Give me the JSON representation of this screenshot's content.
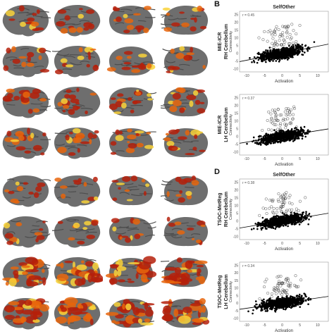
{
  "figure": {
    "panel_b_letter": "B",
    "panel_d_letter": "D",
    "brain_rows": [
      {
        "intensity": 0.35,
        "label": ""
      },
      {
        "intensity": 0.35,
        "label": ""
      },
      {
        "intensity": 0.45,
        "label": ""
      },
      {
        "intensity": 0.45,
        "label": ""
      },
      {
        "intensity": 0.25,
        "label": ""
      },
      {
        "intensity": 0.25,
        "label": ""
      },
      {
        "intensity": 0.95,
        "label": ""
      },
      {
        "intensity": 0.95,
        "label": ""
      }
    ],
    "colors": {
      "cortex": "#6e6e6e",
      "hot_low": "#b5200a",
      "hot_mid": "#e8650c",
      "hot_high": "#f9d23a"
    }
  },
  "chart_data": [
    {
      "type": "scatter",
      "panel": "B",
      "title": "SelfOther",
      "row_label_line1": "MIE-ICR",
      "row_label_line2": "RH Cerebellum",
      "xlabel": "Activation",
      "ylabel": "Connectivity",
      "r_text": "r = 0.45",
      "xticks": [
        "-10",
        "-5",
        "0",
        "5",
        "10"
      ],
      "yticks": [
        "-10",
        "-5",
        "0",
        "5",
        "10",
        "15",
        "20",
        "25"
      ],
      "xlim": [
        -12,
        13
      ],
      "ylim": [
        -12,
        27
      ],
      "slope": 0.45,
      "intercept": 0
    },
    {
      "type": "scatter",
      "panel": "B",
      "title": "",
      "row_label_line1": "MIE-ICR",
      "row_label_line2": "LH Cerebellum",
      "xlabel": "Activation",
      "ylabel": "Connectivity",
      "r_text": "r = 0.37",
      "xticks": [
        "-10",
        "-5",
        "0",
        "5",
        "10"
      ],
      "yticks": [
        "-10",
        "-5",
        "0",
        "5",
        "10",
        "15",
        "20",
        "25"
      ],
      "xlim": [
        -12,
        13
      ],
      "ylim": [
        -12,
        27
      ],
      "slope": 0.37,
      "intercept": 0
    },
    {
      "type": "scatter",
      "panel": "D",
      "title": "SelfOther",
      "row_label_line1": "TSOC-MetReg",
      "row_label_line2": "RH Cerebellum",
      "xlabel": "Activation",
      "ylabel": "Connectivity",
      "r_text": "r = 0.38",
      "xticks": [
        "-10",
        "-5",
        "0",
        "5",
        "10"
      ],
      "yticks": [
        "-10",
        "-5",
        "0",
        "5",
        "10",
        "15",
        "20",
        "25"
      ],
      "xlim": [
        -12,
        13
      ],
      "ylim": [
        -12,
        27
      ],
      "slope": 0.38,
      "intercept": 0
    },
    {
      "type": "scatter",
      "panel": "D",
      "title": "",
      "row_label_line1": "TSOC-MetReg",
      "row_label_line2": "LH Cerebellum",
      "xlabel": "Activation",
      "ylabel": "Connectivity",
      "r_text": "r = 0.34",
      "xticks": [
        "-10",
        "-5",
        "0",
        "5",
        "10"
      ],
      "yticks": [
        "-10",
        "-5",
        "0",
        "5",
        "10",
        "15",
        "20",
        "25"
      ],
      "xlim": [
        -12,
        13
      ],
      "ylim": [
        -12,
        27
      ],
      "slope": 0.34,
      "intercept": 0
    }
  ]
}
